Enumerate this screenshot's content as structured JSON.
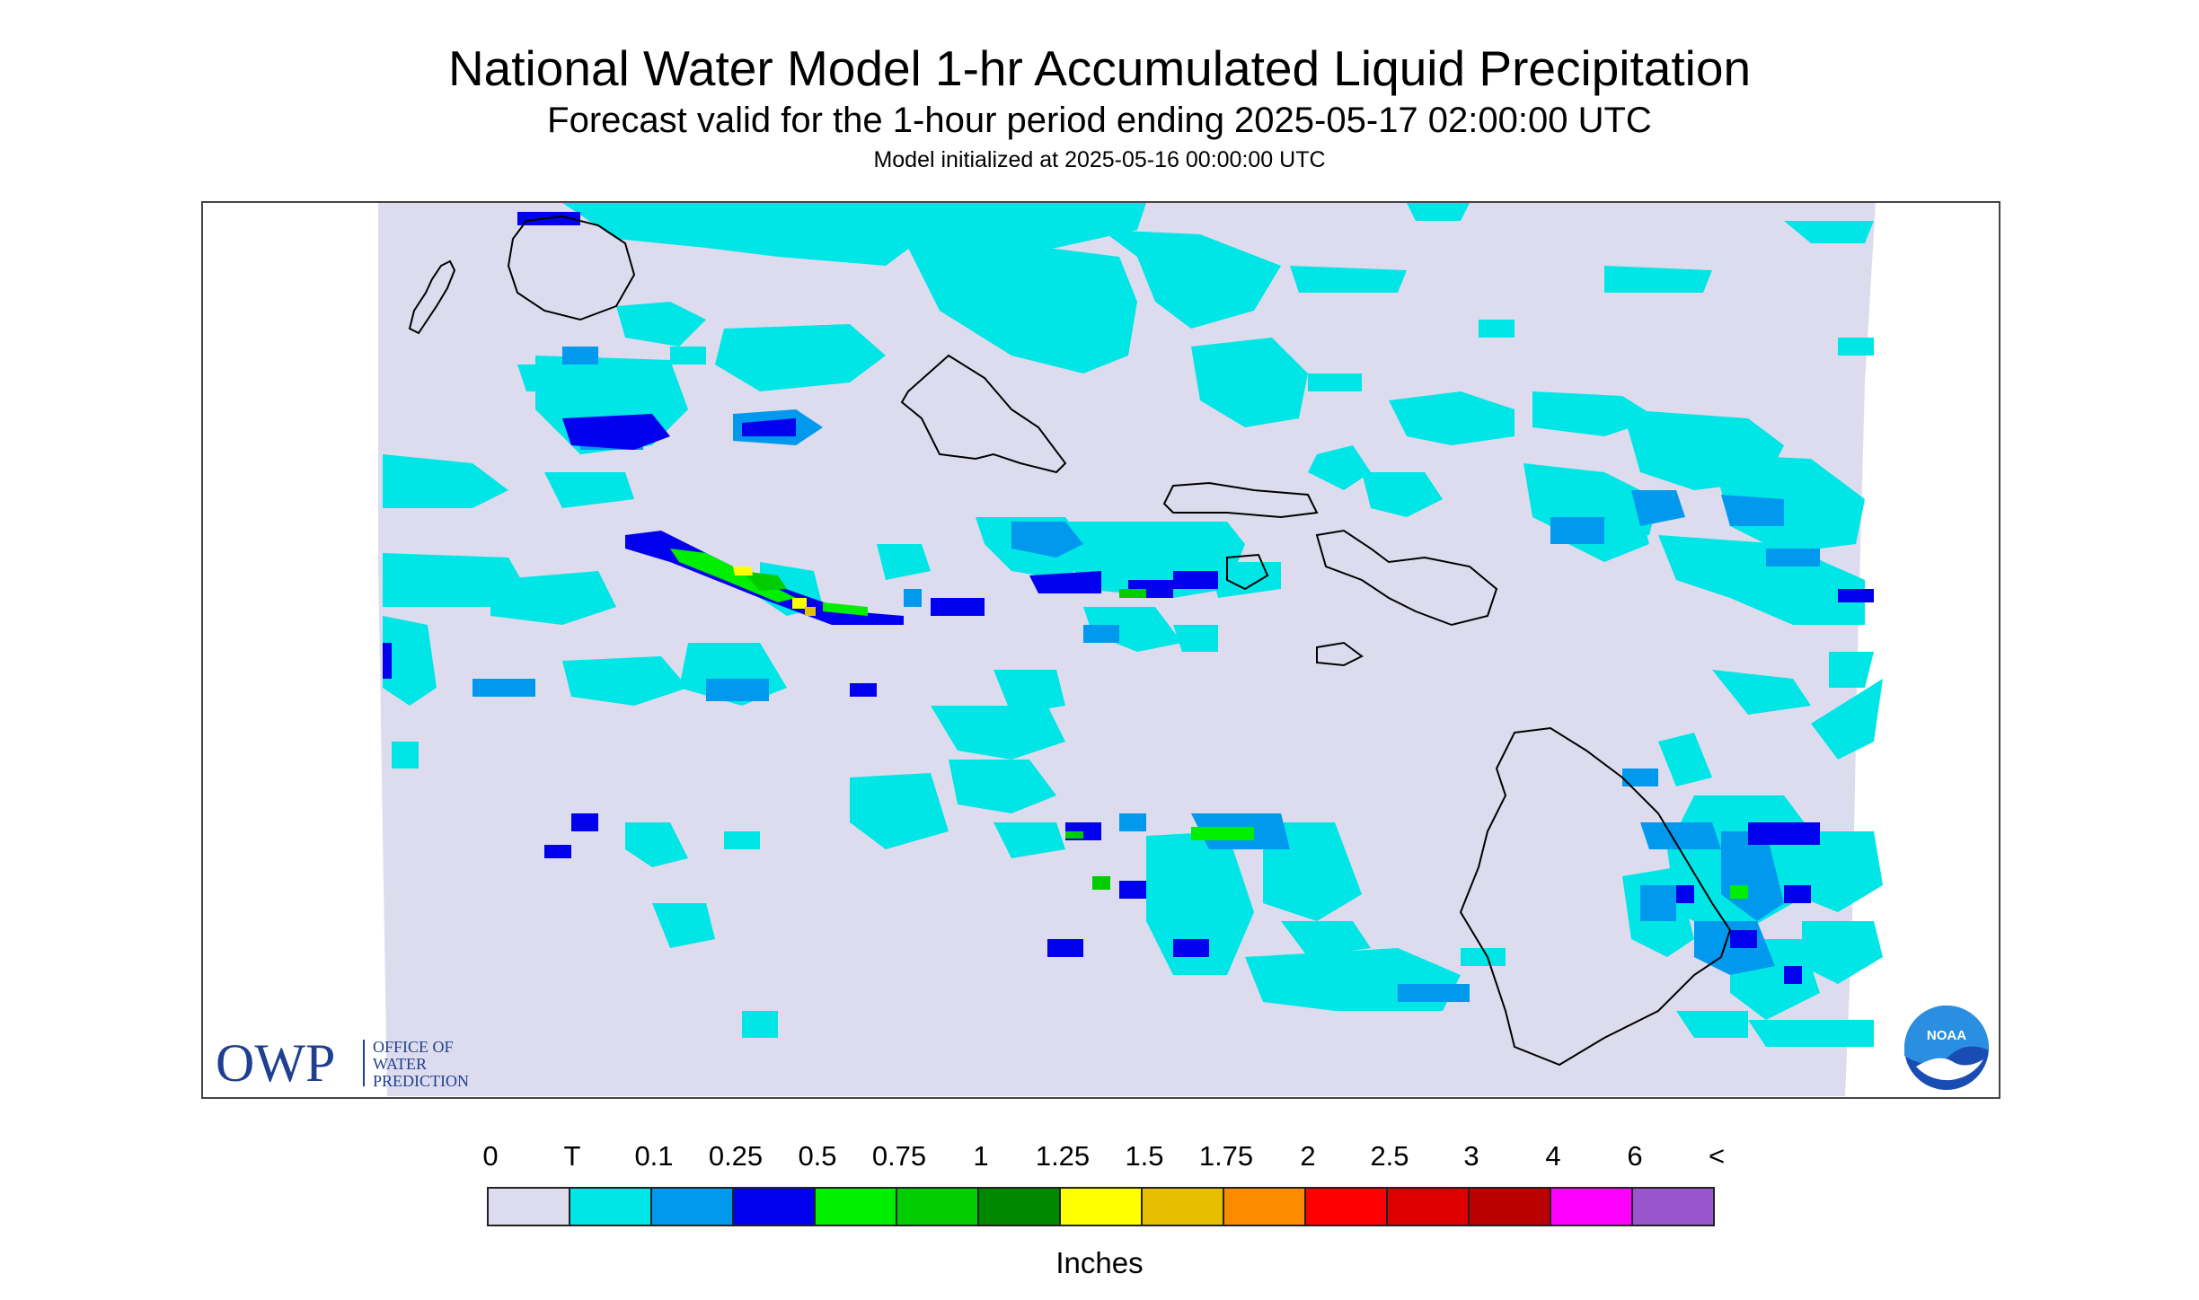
{
  "title": "National Water Model 1-hr Accumulated Liquid Precipitation",
  "subtitle": "Forecast valid for the 1-hour period ending 2025-05-17 02:00:00 UTC",
  "init_text": "Model initialized at 2025-05-16 00:00:00 UTC",
  "logo": {
    "owp_letters": "OWP",
    "owp_lines": [
      "OFFICE OF",
      "WATER",
      "PREDICTION"
    ],
    "noaa_text": "NOAA"
  },
  "colors": {
    "no_data_bg": "#dcdcee",
    "coastline": "#000000",
    "owp_blue": "#1f3f8f"
  },
  "legend": {
    "unit": "Inches",
    "labels": [
      "0",
      "T",
      "0.1",
      "0.25",
      "0.5",
      "0.75",
      "1",
      "1.25",
      "1.5",
      "1.75",
      "2",
      "2.5",
      "3",
      "4",
      "6",
      "<"
    ],
    "colors": [
      "#dcdcee",
      "#00e5e5",
      "#0099ee",
      "#0000ee",
      "#00ee00",
      "#00cc00",
      "#008800",
      "#ffff00",
      "#e6c000",
      "#ff8c00",
      "#ff0000",
      "#dd0000",
      "#bb0000",
      "#ff00ff",
      "#9955cc"
    ]
  }
}
